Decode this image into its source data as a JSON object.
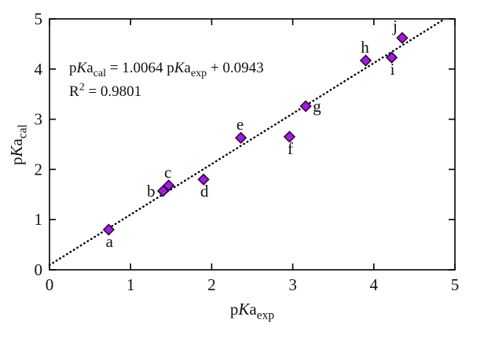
{
  "chart_data": {
    "type": "scatter",
    "title": "",
    "xlabel": "pKa_exp",
    "ylabel": "pKa_cal",
    "xlim": [
      0,
      5
    ],
    "ylim": [
      0,
      5
    ],
    "xticks": [
      0,
      1,
      2,
      3,
      4,
      5
    ],
    "yticks": [
      0,
      1,
      2,
      3,
      4,
      5
    ],
    "grid": false,
    "legend": "none",
    "points": [
      {
        "label": "a",
        "x": 0.73,
        "y": 0.8,
        "label_side": "below"
      },
      {
        "label": "b",
        "x": 1.4,
        "y": 1.57,
        "label_side": "left"
      },
      {
        "label": "c",
        "x": 1.47,
        "y": 1.68,
        "label_side": "above"
      },
      {
        "label": "d",
        "x": 1.9,
        "y": 1.8,
        "label_side": "below"
      },
      {
        "label": "e",
        "x": 2.36,
        "y": 2.63,
        "label_side": "above"
      },
      {
        "label": "f",
        "x": 2.96,
        "y": 2.65,
        "label_side": "below"
      },
      {
        "label": "g",
        "x": 3.16,
        "y": 3.26,
        "label_side": "right"
      },
      {
        "label": "h",
        "x": 3.9,
        "y": 4.17,
        "label_side": "above"
      },
      {
        "label": "i",
        "x": 4.22,
        "y": 4.23,
        "label_side": "below"
      },
      {
        "label": "j",
        "x": 4.35,
        "y": 4.62,
        "label_side": "above-left"
      }
    ],
    "fit_line": {
      "slope": 1.0064,
      "intercept": 0.0943,
      "style": "dotted"
    },
    "annotations": [
      "pKa_cal = 1.0064 pKa_exp + 0.0943",
      "R2 = 0.9801"
    ],
    "marker": {
      "shape": "diamond",
      "size": 13
    }
  },
  "rich_text": {
    "xlabel_segments": [
      [
        "p"
      ],
      [
        "K",
        "i"
      ],
      [
        "a"
      ],
      [
        "exp",
        "sub"
      ]
    ],
    "ylabel_segments": [
      [
        "p"
      ],
      [
        "K",
        "i"
      ],
      [
        "a"
      ],
      [
        "cal",
        "sub"
      ]
    ],
    "equation_segments": [
      [
        "p"
      ],
      [
        "K",
        "i"
      ],
      [
        "a"
      ],
      [
        "cal",
        "sub"
      ],
      [
        " = 1.0064 p"
      ],
      [
        "K",
        "i"
      ],
      [
        "a"
      ],
      [
        "exp",
        "sub"
      ],
      [
        " + 0.0943"
      ]
    ],
    "r_squared_segments": [
      [
        "R"
      ],
      [
        "2",
        "sup"
      ],
      [
        " = 0.9801"
      ]
    ]
  },
  "colors": {
    "marker_fill": "#A31AE8",
    "marker_stroke": "#2E0636",
    "fit_line": "#000000",
    "frame": "#000000",
    "text": "#111111"
  }
}
